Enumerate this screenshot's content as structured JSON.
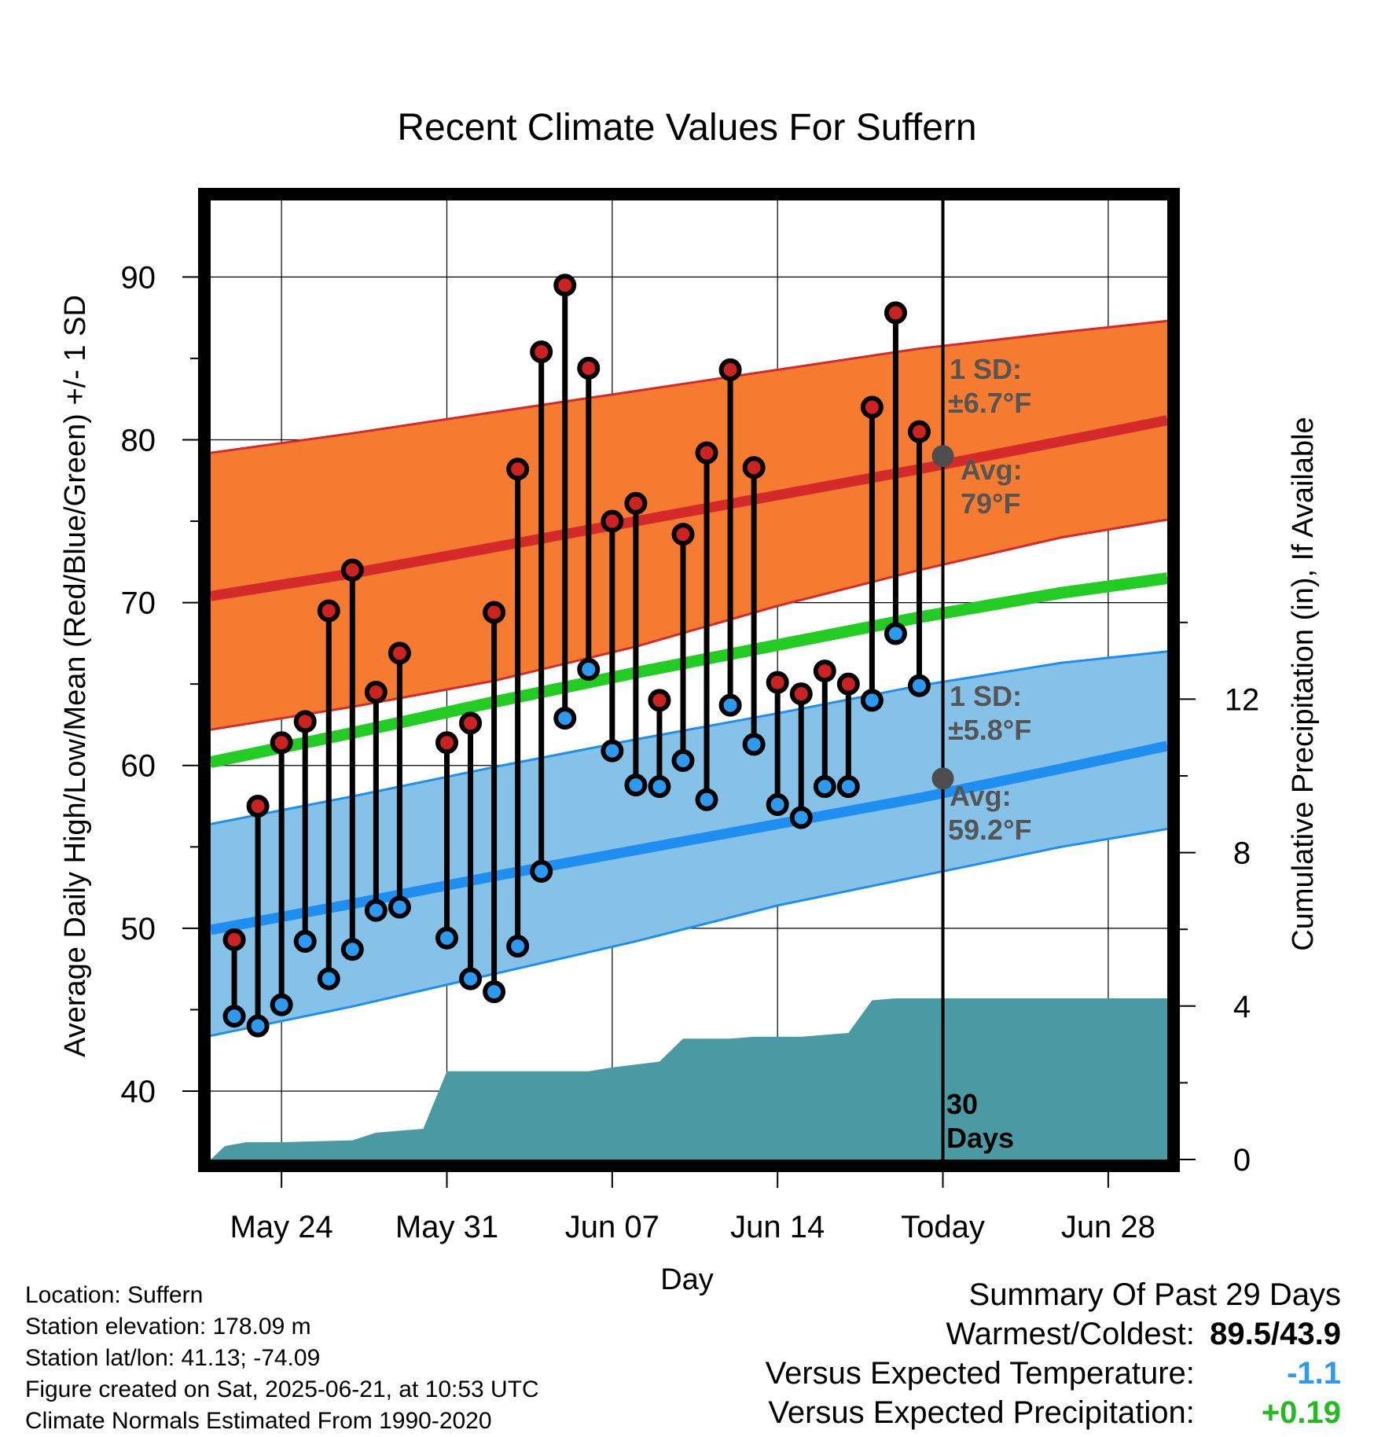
{
  "chart_data": {
    "type": "line",
    "title": "Recent Climate Values For Suffern",
    "xlabel": "Day",
    "ylabel_left": "Average Daily High/Low/Mean (Red/Blue/Green) +/- 1 SD",
    "ylabel_right": "Cumulative Precipitation (in), If Available",
    "x_ticks": [
      {
        "day": 3,
        "label": "May 24"
      },
      {
        "day": 10,
        "label": "May 31"
      },
      {
        "day": 17,
        "label": "Jun 07"
      },
      {
        "day": 24,
        "label": "Jun 14"
      },
      {
        "day": 31,
        "label": "Today"
      },
      {
        "day": 38,
        "label": "Jun 28"
      }
    ],
    "x_range_days": [
      0,
      40.5
    ],
    "ylim_left": [
      35.8,
      94.7
    ],
    "y_ticks_left": [
      40,
      50,
      60,
      70,
      80,
      90
    ],
    "ylim_right": [
      0,
      25
    ],
    "y_ticks_right": [
      0,
      4,
      8,
      12
    ],
    "grid": true,
    "today_day": 31,
    "daily_obs": {
      "day": [
        1,
        2,
        3,
        4,
        5,
        6,
        7,
        8,
        10,
        11,
        12,
        13,
        14,
        15,
        16,
        17,
        18,
        19,
        20,
        21,
        22,
        23,
        24,
        25,
        26,
        27,
        28,
        29
      ],
      "high": [
        49.3,
        57.5,
        61.4,
        62.7,
        69.5,
        72.0,
        64.5,
        66.9,
        61.4,
        62.6,
        69.4,
        78.2,
        85.4,
        89.5,
        84.4,
        75.0,
        76.1,
        64.0,
        74.2,
        79.2,
        84.3,
        78.3,
        65.1,
        64.4,
        65.8,
        65.0,
        82.0,
        87.8
      ],
      "low": [
        44.6,
        44.0,
        45.3,
        49.2,
        46.9,
        48.7,
        51.1,
        51.3,
        49.4,
        46.9,
        46.1,
        48.9,
        53.5,
        62.9,
        65.9,
        60.9,
        58.8,
        58.7,
        60.3,
        57.9,
        63.7,
        61.3,
        57.6,
        56.8,
        58.7,
        58.7,
        64.0,
        68.1
      ]
    },
    "last_obs_day": {
      "day": 30,
      "high": 80.5,
      "low": 64.9
    },
    "normals": {
      "x_days": [
        0,
        6,
        12,
        18,
        24,
        30,
        36,
        40.5
      ],
      "avg_high": [
        70.4,
        71.8,
        73.4,
        75.0,
        76.6,
        78.2,
        79.9,
        81.2
      ],
      "high_sd_upper": [
        79.2,
        80.4,
        81.7,
        83.0,
        84.3,
        85.6,
        86.6,
        87.3
      ],
      "high_sd_lower": [
        62.2,
        63.6,
        65.2,
        67.3,
        69.8,
        72.0,
        74.0,
        75.1
      ],
      "avg_mean": [
        60.2,
        62.0,
        63.9,
        65.7,
        67.4,
        69.1,
        70.6,
        71.5
      ],
      "avg_low": [
        49.9,
        51.5,
        53.2,
        54.8,
        56.4,
        58.0,
        59.8,
        61.2
      ],
      "low_sd_upper": [
        56.4,
        58.1,
        59.9,
        61.6,
        63.2,
        64.9,
        66.3,
        67.0
      ],
      "low_sd_lower": [
        43.4,
        45.2,
        47.2,
        49.2,
        51.4,
        53.2,
        55.0,
        56.1
      ]
    },
    "precipitation": {
      "day": [
        0,
        0.6,
        1.5,
        3,
        6,
        7,
        9,
        10,
        11,
        15,
        16,
        17,
        19,
        20,
        22,
        23,
        25,
        26,
        27,
        28,
        29,
        30,
        31,
        40.5
      ],
      "cumulative_in": [
        0,
        0.35,
        0.45,
        0.45,
        0.5,
        0.7,
        0.8,
        2.3,
        2.3,
        2.3,
        2.3,
        2.4,
        2.55,
        3.15,
        3.15,
        3.2,
        3.2,
        3.25,
        3.3,
        4.15,
        4.2,
        4.2,
        4.2,
        4.2
      ]
    },
    "annotations": {
      "high_sd": "1 SD:",
      "high_sd_value": "±6.7°F",
      "high_avg": "Avg:",
      "high_avg_value": "79°F",
      "low_sd": "1 SD:",
      "low_sd_value": "±5.8°F",
      "low_avg": "Avg:",
      "low_avg_value": "59.2°F",
      "days_count": "30",
      "days_word": "Days"
    },
    "today_avg_high": 79.0,
    "today_avg_low": 59.2
  },
  "colors": {
    "high_band": "#f47b30",
    "high_line": "#d42a2a",
    "low_band": "#86c1e8",
    "low_line": "#1f8ef1",
    "mean_line": "#22cc22",
    "precip": "#4a9aa3",
    "annotation": "#555555",
    "marker_high": "#cc2222",
    "marker_low": "#2b9af0",
    "positive": "#22bb22",
    "negative": "#2b9af0"
  },
  "footer": {
    "location": "Location: Suffern",
    "elevation": "Station elevation: 178.09 m",
    "latlon": "Station lat/lon: 41.13; -74.09",
    "created": "Figure created on Sat, 2025-06-21, at 10:53 UTC",
    "normals": "Climate Normals Estimated From 1990-2020"
  },
  "summary": {
    "title": "Summary Of Past 29 Days",
    "warm_cold_label": "Warmest/Coldest:",
    "warm_cold_value": "89.5/43.9",
    "temp_label": "Versus Expected Temperature:",
    "temp_value": "-1.1",
    "precip_label": "Versus Expected Precipitation:",
    "precip_value": "+0.19"
  }
}
